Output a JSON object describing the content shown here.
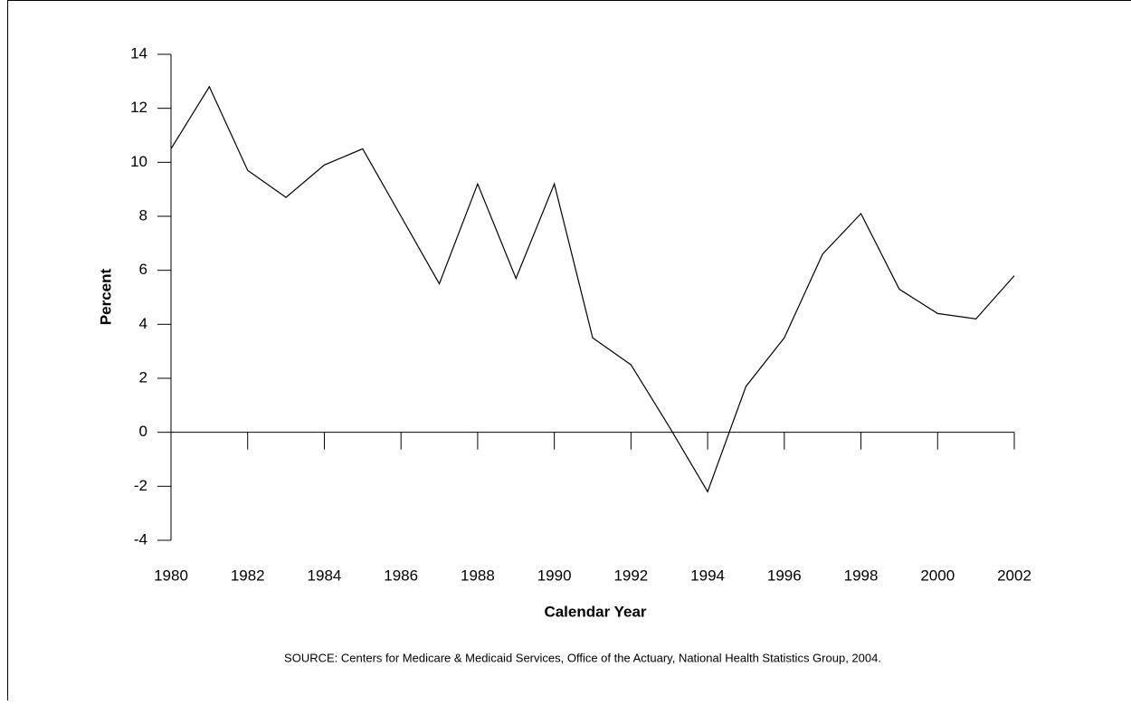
{
  "chart_data": {
    "type": "line",
    "y_label": "Percent",
    "x_label": "Calendar Year",
    "note": "SOURCE: Centers for Medicare & Medicaid Services, Office of the Actuary, National Health Statistics Group, 2004.",
    "x": [
      1980,
      1981,
      1982,
      1983,
      1984,
      1985,
      1986,
      1987,
      1988,
      1989,
      1990,
      1991,
      1992,
      1993,
      1994,
      1995,
      1996,
      1997,
      1998,
      1999,
      2000,
      2001,
      2002
    ],
    "series": [
      {
        "color": "#000000",
        "values": [
          10.5,
          12.8,
          9.7,
          8.7,
          9.9,
          10.5,
          8.0,
          5.5,
          9.2,
          5.7,
          9.2,
          3.5,
          2.5,
          0.2,
          -2.2,
          1.7,
          3.5,
          6.6,
          8.1,
          5.3,
          4.4,
          4.2,
          5.8
        ]
      }
    ],
    "xlim": [
      1980,
      2002
    ],
    "xticks": [
      1980,
      1982,
      1984,
      1986,
      1988,
      1990,
      1992,
      1994,
      1996,
      1998,
      2000,
      2002
    ],
    "ylim": [
      -4,
      14
    ],
    "yticks": [
      -4,
      -2,
      0,
      2,
      4,
      6,
      8,
      10,
      12,
      14
    ],
    "grid": false
  }
}
